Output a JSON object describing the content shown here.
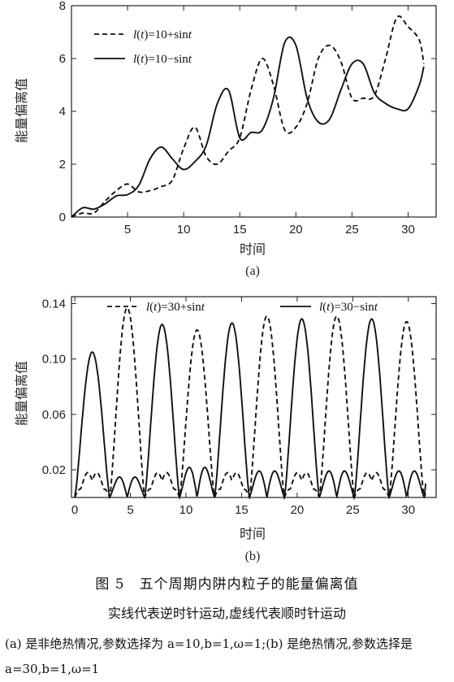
{
  "chart_data": [
    {
      "type": "line",
      "panel_label": "(a)",
      "xlabel": "时间",
      "ylabel": "能量偏离值",
      "xlim": [
        0,
        32.5
      ],
      "ylim": [
        0,
        8
      ],
      "xticks": [
        "5",
        "10",
        "15",
        "20",
        "25",
        "30"
      ],
      "xtick_values": [
        5,
        10,
        15,
        20,
        25,
        30
      ],
      "yticks": [
        "0",
        "2",
        "4",
        "6",
        "8"
      ],
      "ytick_values": [
        0,
        2,
        4,
        6,
        8
      ],
      "legend_position": "top-left",
      "series": [
        {
          "name": "l(t)=10+sint",
          "label_italic": "l",
          "label_t": "t",
          "label_rest": ")=10+sin",
          "label_tail": "t",
          "style": "dashed",
          "x": [
            0,
            1,
            2,
            3,
            4,
            5,
            6,
            7,
            8,
            9,
            10,
            11,
            12,
            13,
            14,
            15,
            16,
            17,
            18,
            19,
            20,
            21,
            22,
            23,
            24,
            25,
            26,
            27,
            28,
            29,
            30,
            31,
            31.4
          ],
          "y": [
            0,
            0.15,
            0.15,
            0.6,
            1.0,
            1.25,
            0.95,
            1.0,
            1.15,
            1.4,
            2.6,
            3.4,
            2.3,
            2.0,
            2.5,
            3.0,
            4.8,
            6.0,
            5.0,
            3.3,
            3.4,
            4.3,
            6.0,
            6.5,
            5.9,
            4.5,
            4.5,
            4.6,
            6.0,
            7.55,
            7.2,
            6.7,
            5.8
          ]
        },
        {
          "name": "l(t)=10−sint",
          "label_italic": "l",
          "label_t": "t",
          "label_rest": ")=10−sin",
          "label_tail": "t",
          "style": "solid",
          "x": [
            0,
            1,
            2,
            3,
            4,
            5,
            6,
            7,
            8,
            9,
            10,
            11,
            12,
            13,
            14,
            15,
            16,
            17,
            18,
            19,
            20,
            21,
            22,
            23,
            24,
            25,
            26,
            27,
            28,
            29,
            30,
            31,
            31.4
          ],
          "y": [
            0,
            0.35,
            0.3,
            0.5,
            0.8,
            0.85,
            1.2,
            2.2,
            2.65,
            2.2,
            1.8,
            2.1,
            2.7,
            4.3,
            4.8,
            3.0,
            3.2,
            3.3,
            4.5,
            6.6,
            6.5,
            4.5,
            3.6,
            3.7,
            4.8,
            5.8,
            5.8,
            4.7,
            4.3,
            4.1,
            4.1,
            5.0,
            5.7
          ]
        }
      ]
    },
    {
      "type": "line",
      "panel_label": "(b)",
      "xlabel": "时间",
      "ylabel": "能量偏离值",
      "xlim": [
        -0.3,
        32.5
      ],
      "ylim": [
        0,
        0.145
      ],
      "xticks": [
        "0",
        "5",
        "10",
        "15",
        "20",
        "25",
        "30"
      ],
      "xtick_values": [
        0,
        5,
        10,
        15,
        20,
        25,
        30
      ],
      "yticks": [
        "0.02",
        "0.06",
        "0.10",
        "0.14"
      ],
      "ytick_values": [
        0.02,
        0.06,
        0.1,
        0.14
      ],
      "legend_position": "top",
      "series": [
        {
          "name": "l(t)=30+sint",
          "label_italic": "l",
          "label_t": "t",
          "label_rest": ")=30+sin",
          "label_tail": "t",
          "style": "dashed",
          "peaks": [
            0.137,
            0.121,
            0.131,
            0.131,
            0.127,
            0.127,
            0.128
          ],
          "troughs_small": [
            0.02,
            0.02,
            0.02,
            0.02,
            0.02,
            0.02,
            0.02
          ]
        },
        {
          "name": "l(t)=30−sint",
          "label_italic": "l",
          "label_t": "t",
          "label_rest": ")=30−sin",
          "label_tail": "t",
          "style": "solid",
          "peaks": [
            0.105,
            0.125,
            0.126,
            0.129,
            0.129,
            0.126
          ],
          "troughs_small": [
            0.017,
            0.025,
            0.022,
            0.022,
            0.022,
            0.022,
            0.02
          ]
        }
      ]
    }
  ],
  "caption": {
    "title": "图 5　五个周期内阱内粒子的能量偏离值",
    "line1": "实线代表逆时针运动,虚线代表顺时针运动",
    "line2": "(a) 是非绝热情况,参数选择为 a=10,b=1,ω=1;(b) 是绝热情况,参数选择是 a=30,b=1,ω=1"
  }
}
